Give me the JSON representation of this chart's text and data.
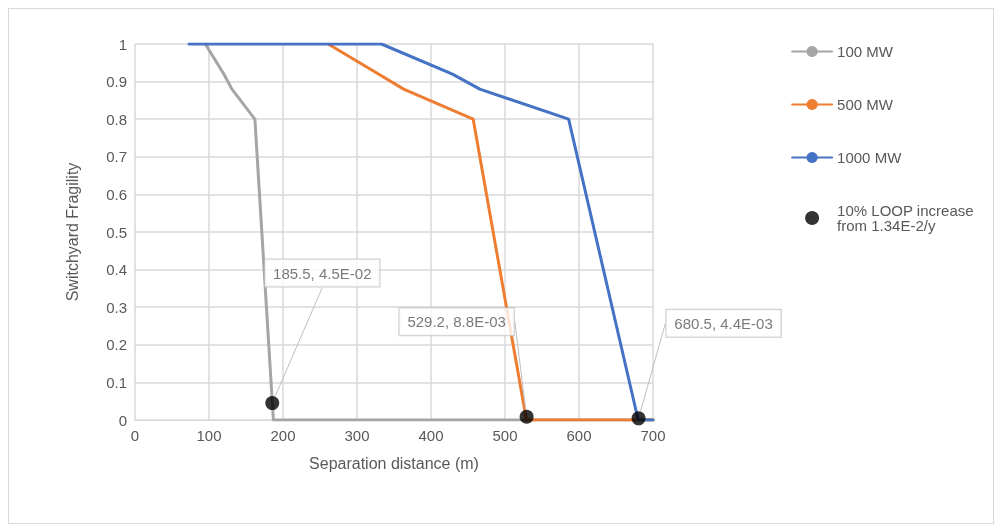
{
  "chart_data": {
    "type": "line",
    "xlabel": "Separation distance (m)",
    "ylabel": "Switchyard Fragility",
    "xlim": [
      0,
      700
    ],
    "xticks": [
      0,
      100,
      200,
      300,
      400,
      500,
      600,
      700
    ],
    "ylim": [
      0,
      1
    ],
    "yticks": [
      0,
      0.1,
      0.2,
      0.3,
      0.4,
      0.5,
      0.6,
      0.7,
      0.8,
      0.9,
      1
    ],
    "grid": true,
    "legend": "right",
    "marker": "none",
    "line_style": "solid",
    "series": [
      {
        "name": "100 MW",
        "color": "#a5a5a5",
        "x": [
          95,
          120,
          131,
          162,
          187,
          700
        ],
        "values": [
          1,
          0.92,
          0.88,
          0.8,
          0,
          0
        ]
      },
      {
        "name": "500 MW",
        "color": "#ed7d31",
        "x": [
          261,
          329,
          363,
          457,
          529,
          700
        ],
        "values": [
          1,
          0.92,
          0.88,
          0.8,
          0,
          0
        ]
      },
      {
        "name": "1000 MW",
        "color": "#4472c4",
        "x": [
          73,
          333,
          429,
          466,
          586,
          680,
          700
        ],
        "values": [
          1,
          1,
          0.92,
          0.88,
          0.8,
          0,
          0
        ]
      },
      {
        "name": "10% LOOP increase from 1.34E-2/y",
        "type": "scatter",
        "marker": "circle",
        "color": "#000000",
        "x": [
          185.5,
          529.2,
          680.5
        ],
        "values": [
          0.045,
          0.0088,
          0.0044
        ],
        "value_labels": [
          "185.5, 4.5E-02",
          "529.2, 8.8E-03",
          "680.5, 4.4E-03"
        ]
      }
    ]
  }
}
